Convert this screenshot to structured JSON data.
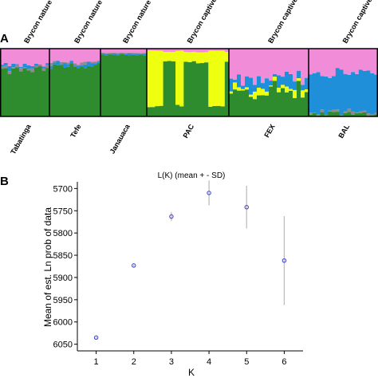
{
  "panel_labels": {
    "a": "A",
    "b": "B"
  },
  "structure_plot": {
    "groups": [
      {
        "top_label": "Brycon nature",
        "bottom_label": "Tabatinga",
        "n": 13
      },
      {
        "top_label": "Brycon nature",
        "bottom_label": "Tefe",
        "n": 15
      },
      {
        "top_label": "Brycon nature",
        "bottom_label": "Janauaca",
        "n": 12
      },
      {
        "top_label": "Brycon captive",
        "bottom_label": "PAC",
        "n": 20
      },
      {
        "top_label": "Brycon captive",
        "bottom_label": "FEX",
        "n": 20
      },
      {
        "top_label": "Brycon captive",
        "bottom_label": "BAL",
        "n": 18
      }
    ],
    "cluster_colors": {
      "green": "#2e8b2e",
      "pink": "#f08cd8",
      "yellow": "#eeff10",
      "blue": "#1e8fd8",
      "gray": "#8c8c8c"
    }
  },
  "chart_data": {
    "type": "scatter",
    "title": "L(K) (mean + - SD)",
    "xlabel": "K",
    "ylabel": "Mean of est. Ln prob of data",
    "x": [
      1,
      2,
      3,
      4,
      5,
      6
    ],
    "y": [
      -6035,
      -5873,
      -5763,
      -5710,
      -5742,
      -5862
    ],
    "sd": [
      2,
      2,
      10,
      28,
      48,
      100
    ],
    "xticks": [
      "1",
      "2",
      "3",
      "4",
      "5",
      "6"
    ],
    "ytick_values": [
      -5700,
      -5750,
      -5800,
      -5850,
      -5900,
      -5950,
      -6000,
      -6050
    ],
    "ytick_labels": [
      "5700",
      "5750",
      "5800",
      "5850",
      "5900",
      "5950",
      "6000",
      "6050"
    ],
    "xlim": [
      0.5,
      6.5
    ],
    "ylim": [
      -6065,
      -5685
    ],
    "grid": false,
    "marker_color": "#4a4ad0",
    "errorbar_color": "#bdbdbd"
  }
}
